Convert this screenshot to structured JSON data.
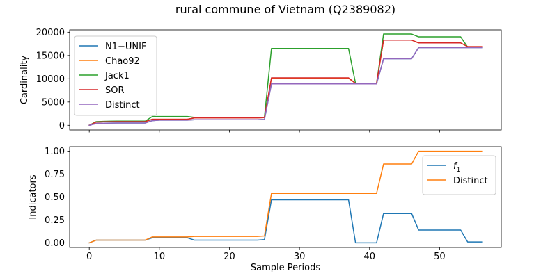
{
  "figure": {
    "title": "rural commune of Vietnam (Q2389082)"
  },
  "chart_data": [
    {
      "type": "line",
      "title": "",
      "xlabel": "",
      "ylabel": "Cardinality",
      "xlim": [
        -2.8,
        58.8
      ],
      "ylim": [
        -1000,
        20500
      ],
      "xticks": [
        0,
        10,
        20,
        30,
        40,
        50
      ],
      "yticks": [
        0,
        5000,
        10000,
        15000,
        20000
      ],
      "ytick_labels": [
        "0",
        "5000",
        "10000",
        "15000",
        "20000"
      ],
      "show_xtick_labels": false,
      "grid": false,
      "legend_position": "upper left",
      "x": [
        0,
        1,
        2,
        3,
        4,
        5,
        6,
        7,
        8,
        9,
        10,
        11,
        12,
        13,
        14,
        15,
        16,
        17,
        18,
        19,
        20,
        21,
        22,
        23,
        24,
        25,
        26,
        27,
        28,
        29,
        30,
        31,
        32,
        33,
        34,
        35,
        36,
        37,
        38,
        39,
        40,
        41,
        42,
        43,
        44,
        45,
        46,
        47,
        48,
        49,
        50,
        51,
        52,
        53,
        54,
        55,
        56
      ],
      "series": [
        {
          "name": "N1−UNIF",
          "color": "#1f77b4",
          "values": [
            0,
            400,
            450,
            480,
            500,
            500,
            500,
            500,
            500,
            1000,
            1100,
            1100,
            1100,
            1100,
            1100,
            1200,
            1200,
            1200,
            1200,
            1200,
            1200,
            1200,
            1200,
            1200,
            1200,
            1250,
            8900,
            8900,
            8900,
            8900,
            8900,
            8900,
            8900,
            8900,
            8900,
            8900,
            8900,
            8900,
            8900,
            8900,
            8900,
            8900,
            14300,
            14300,
            14300,
            14300,
            14300,
            16700,
            16700,
            16700,
            16700,
            16700,
            16700,
            16700,
            16700,
            16700,
            16700
          ]
        },
        {
          "name": "Chao92",
          "color": "#ff7f0e",
          "values": [
            0,
            700,
            750,
            780,
            800,
            800,
            800,
            800,
            800,
            1300,
            1300,
            1300,
            1300,
            1300,
            1300,
            1600,
            1600,
            1600,
            1600,
            1600,
            1600,
            1600,
            1600,
            1600,
            1600,
            1650,
            10100,
            10100,
            10100,
            10100,
            10100,
            10100,
            10100,
            10100,
            10100,
            10100,
            10100,
            10100,
            9000,
            9000,
            9000,
            9000,
            18300,
            18300,
            18300,
            18300,
            18300,
            17700,
            17700,
            17700,
            17700,
            17700,
            17700,
            17700,
            16900,
            16900,
            16900
          ]
        },
        {
          "name": "Jack1",
          "color": "#2ca02c",
          "values": [
            0,
            800,
            850,
            880,
            900,
            900,
            900,
            900,
            900,
            1900,
            1900,
            1900,
            1900,
            1900,
            1900,
            1700,
            1700,
            1700,
            1700,
            1700,
            1700,
            1700,
            1700,
            1700,
            1700,
            1750,
            16500,
            16500,
            16500,
            16500,
            16500,
            16500,
            16500,
            16500,
            16500,
            16500,
            16500,
            16500,
            9000,
            9000,
            9000,
            9000,
            19600,
            19600,
            19600,
            19600,
            19600,
            19000,
            19000,
            19000,
            19000,
            19000,
            19000,
            19000,
            16800,
            16800,
            16800
          ]
        },
        {
          "name": "SOR",
          "color": "#d62728",
          "values": [
            0,
            700,
            750,
            780,
            800,
            800,
            800,
            800,
            800,
            1300,
            1300,
            1300,
            1300,
            1300,
            1300,
            1600,
            1600,
            1600,
            1600,
            1600,
            1600,
            1600,
            1600,
            1600,
            1600,
            1650,
            10200,
            10200,
            10200,
            10200,
            10200,
            10200,
            10200,
            10200,
            10200,
            10200,
            10200,
            10200,
            9000,
            9000,
            9000,
            9000,
            18300,
            18300,
            18300,
            18300,
            18300,
            17700,
            17700,
            17700,
            17700,
            17700,
            17700,
            17700,
            16900,
            16900,
            16900
          ]
        },
        {
          "name": "Distinct",
          "color": "#9467bd",
          "values": [
            0,
            400,
            450,
            480,
            500,
            500,
            500,
            500,
            500,
            1000,
            1100,
            1100,
            1100,
            1100,
            1100,
            1200,
            1200,
            1200,
            1200,
            1200,
            1200,
            1200,
            1200,
            1200,
            1200,
            1250,
            8900,
            8900,
            8900,
            8900,
            8900,
            8900,
            8900,
            8900,
            8900,
            8900,
            8900,
            8900,
            8900,
            8900,
            8900,
            8900,
            14300,
            14300,
            14300,
            14300,
            14300,
            16700,
            16700,
            16700,
            16700,
            16700,
            16700,
            16700,
            16700,
            16700,
            16700
          ]
        }
      ]
    },
    {
      "type": "line",
      "title": "",
      "xlabel": "Sample Periods",
      "ylabel": "Indicators",
      "xlim": [
        -2.8,
        58.8
      ],
      "ylim": [
        -0.05,
        1.05
      ],
      "xticks": [
        0,
        10,
        20,
        30,
        40,
        50
      ],
      "xtick_labels": [
        "0",
        "10",
        "20",
        "30",
        "40",
        "50"
      ],
      "yticks": [
        0,
        0.25,
        0.5,
        0.75,
        1.0
      ],
      "ytick_labels": [
        "0.00",
        "0.25",
        "0.50",
        "0.75",
        "1.00"
      ],
      "show_xtick_labels": true,
      "grid": false,
      "legend_position": "upper right",
      "x": [
        0,
        1,
        2,
        3,
        4,
        5,
        6,
        7,
        8,
        9,
        10,
        11,
        12,
        13,
        14,
        15,
        16,
        17,
        18,
        19,
        20,
        21,
        22,
        23,
        24,
        25,
        26,
        27,
        28,
        29,
        30,
        31,
        32,
        33,
        34,
        35,
        36,
        37,
        38,
        39,
        40,
        41,
        42,
        43,
        44,
        45,
        46,
        47,
        48,
        49,
        50,
        51,
        52,
        53,
        54,
        55,
        56
      ],
      "series": [
        {
          "name": "f1",
          "color": "#1f77b4",
          "values": [
            0,
            0.03,
            0.03,
            0.03,
            0.03,
            0.03,
            0.03,
            0.03,
            0.03,
            0.055,
            0.055,
            0.055,
            0.055,
            0.055,
            0.055,
            0.03,
            0.03,
            0.03,
            0.03,
            0.03,
            0.03,
            0.03,
            0.03,
            0.03,
            0.03,
            0.035,
            0.47,
            0.47,
            0.47,
            0.47,
            0.47,
            0.47,
            0.47,
            0.47,
            0.47,
            0.47,
            0.47,
            0.47,
            0.0,
            0.0,
            0.0,
            0.0,
            0.32,
            0.32,
            0.32,
            0.32,
            0.32,
            0.14,
            0.14,
            0.14,
            0.14,
            0.14,
            0.14,
            0.14,
            0.01,
            0.01,
            0.01
          ]
        },
        {
          "name": "Distinct",
          "color": "#ff7f0e",
          "values": [
            0,
            0.03,
            0.03,
            0.03,
            0.03,
            0.03,
            0.03,
            0.03,
            0.03,
            0.065,
            0.065,
            0.065,
            0.065,
            0.065,
            0.065,
            0.07,
            0.07,
            0.07,
            0.07,
            0.07,
            0.07,
            0.07,
            0.07,
            0.07,
            0.07,
            0.075,
            0.54,
            0.54,
            0.54,
            0.54,
            0.54,
            0.54,
            0.54,
            0.54,
            0.54,
            0.54,
            0.54,
            0.54,
            0.54,
            0.54,
            0.54,
            0.54,
            0.86,
            0.86,
            0.86,
            0.86,
            0.86,
            1.0,
            1.0,
            1.0,
            1.0,
            1.0,
            1.0,
            1.0,
            1.0,
            1.0,
            1.0
          ]
        }
      ]
    }
  ]
}
